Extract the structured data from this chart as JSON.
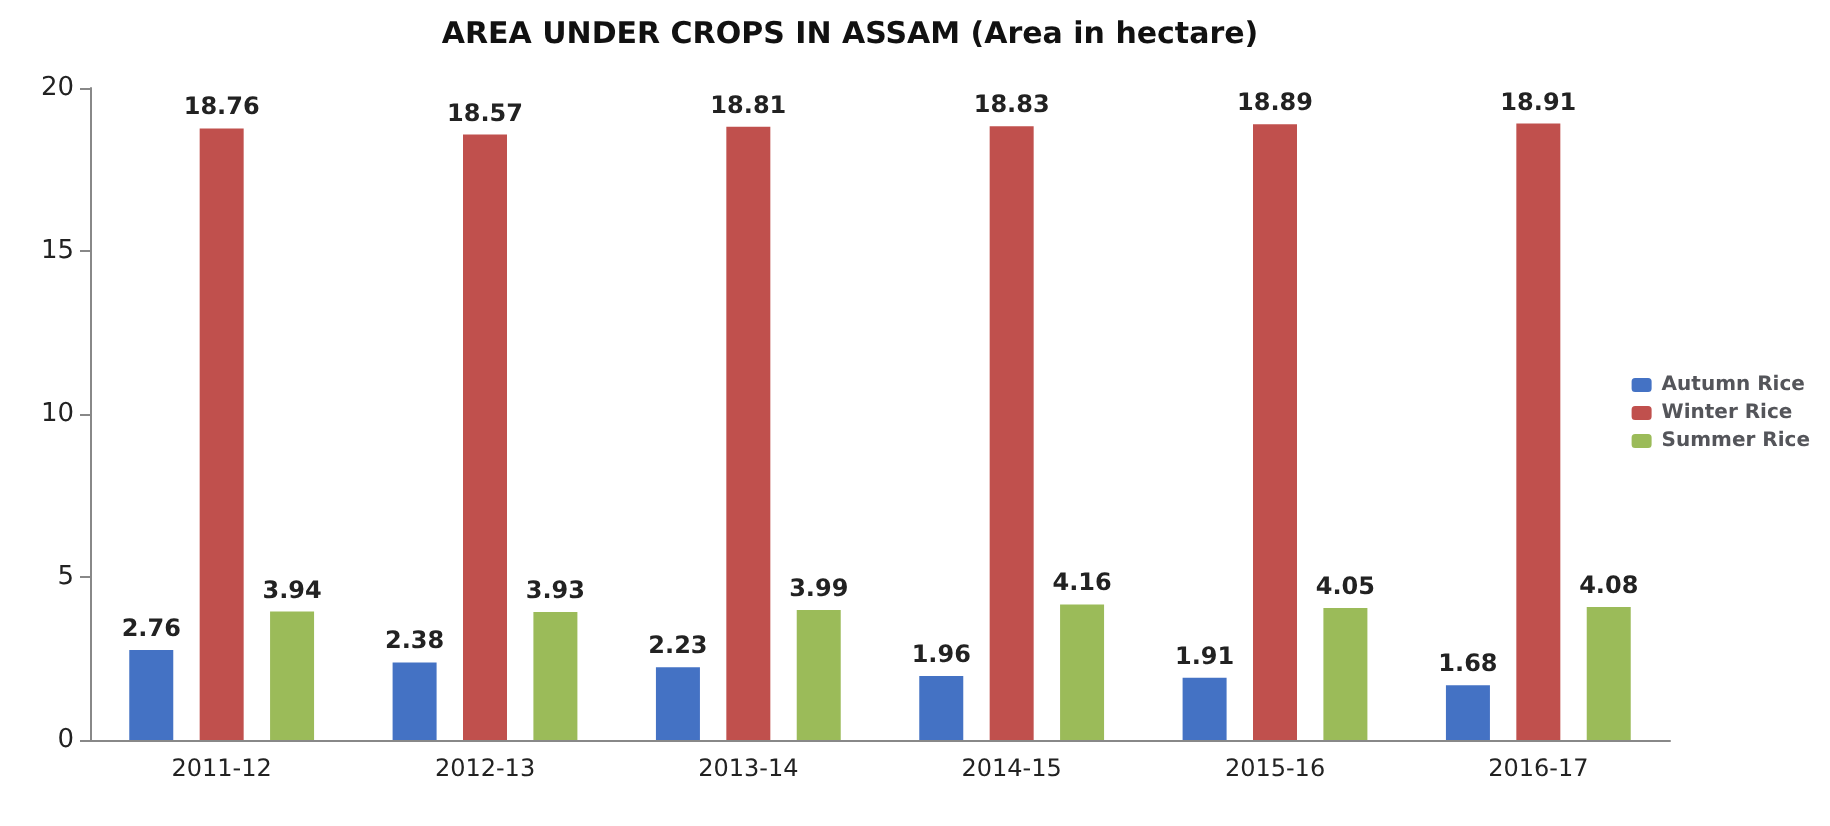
{
  "chart_data": {
    "type": "bar",
    "title": "AREA UNDER CROPS IN ASSAM (Area in hectare)",
    "categories": [
      "2011-12",
      "2012-13",
      "2013-14",
      "2014-15",
      "2015-16",
      "2016-17"
    ],
    "series": [
      {
        "name": "Autumn Rice",
        "color": "#4472c4",
        "values": [
          2.76,
          2.38,
          2.23,
          1.96,
          1.91,
          1.68
        ]
      },
      {
        "name": "Winter Rice",
        "color": "#c0504d",
        "values": [
          18.76,
          18.57,
          18.81,
          18.83,
          18.89,
          18.91
        ]
      },
      {
        "name": "Summer Rice",
        "color": "#9bbb59",
        "values": [
          3.94,
          3.93,
          3.99,
          4.16,
          4.05,
          4.08
        ]
      }
    ],
    "ylim": [
      0,
      20
    ],
    "yticks": [
      0,
      5,
      10,
      15,
      20
    ],
    "grid": false,
    "legend": "right",
    "data_labels": true
  }
}
